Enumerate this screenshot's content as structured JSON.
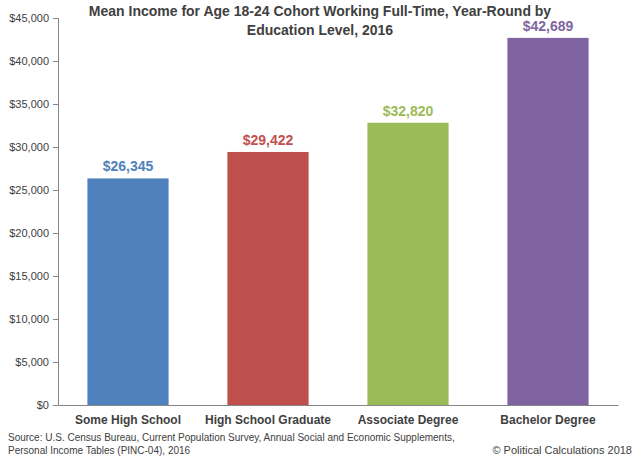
{
  "chart_data": {
    "type": "bar",
    "title": "Mean Income for Age 18-24 Cohort Working Full-Time, Year-Round by Education Level, 2016",
    "categories": [
      "Some High School",
      "High School Graduate",
      "Associate Degree",
      "Bachelor Degree"
    ],
    "values": [
      26345,
      29422,
      32820,
      42689
    ],
    "value_labels": [
      "$26,345",
      "$29,422",
      "$32,820",
      "$42,689"
    ],
    "colors": [
      "#4f81bd",
      "#c0504d",
      "#9bbb59",
      "#8064a2"
    ],
    "data_labels": true,
    "grid": false,
    "ylim": [
      0,
      45000
    ],
    "yticks": [
      {
        "value": 0,
        "label": "$0"
      },
      {
        "value": 5000,
        "label": "$5,000"
      },
      {
        "value": 10000,
        "label": "$10,000"
      },
      {
        "value": 15000,
        "label": "$15,000"
      },
      {
        "value": 20000,
        "label": "$20,000"
      },
      {
        "value": 25000,
        "label": "$25,000"
      },
      {
        "value": 30000,
        "label": "$30,000"
      },
      {
        "value": 35000,
        "label": "$35,000"
      },
      {
        "value": 40000,
        "label": "$40,000"
      },
      {
        "value": 45000,
        "label": "$45,000"
      }
    ],
    "annotations": [
      "Source: U.S. Census Bureau, Current Population Survey, Annual Social and Economic Supplements, Personal Income Tables (PINC-04), 2016",
      "© Political Calculations 2018"
    ]
  }
}
